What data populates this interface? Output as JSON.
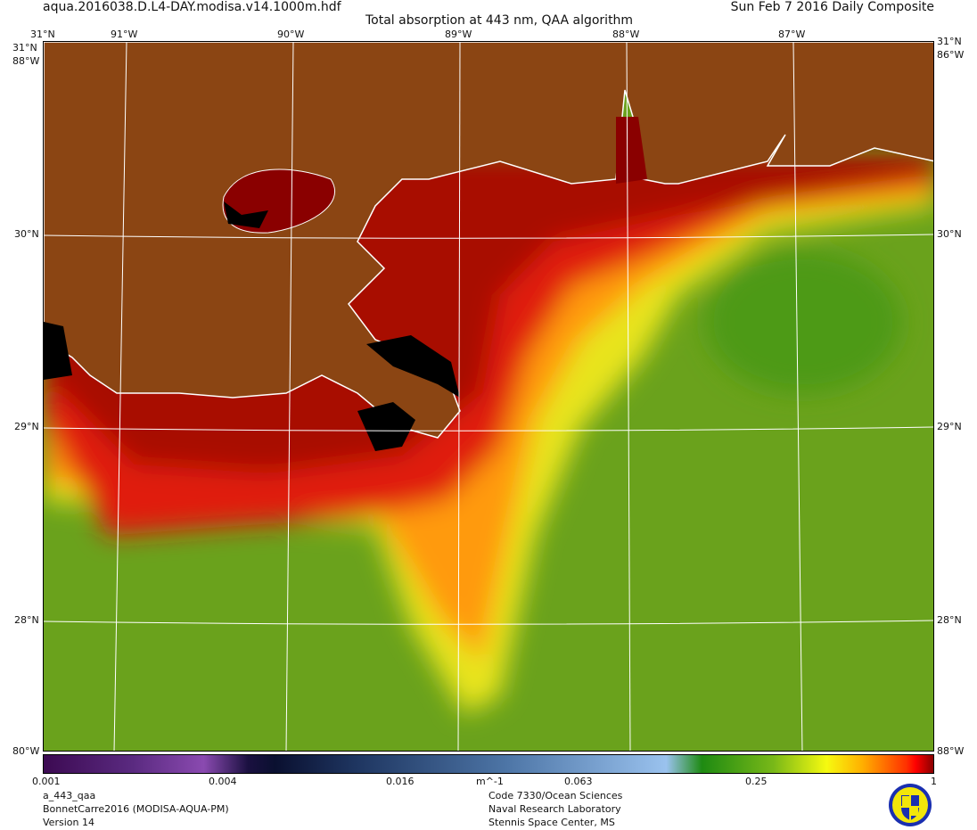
{
  "header": {
    "filename": "aqua.2016038.D.L4-DAY.modisa.v14.1000m.hdf",
    "date": "Sun Feb  7 2016 Daily Composite",
    "title": "Total absorption at 443 nm, QAA algorithm"
  },
  "map": {
    "lon_labels": [
      "91°W",
      "90°W",
      "89°W",
      "88°W",
      "87°W"
    ],
    "lat_labels": [
      "30°N",
      "29°N",
      "28°N"
    ],
    "corner_labels": {
      "top_lat": "31°N",
      "left_top": "31°N",
      "right_top": "31°N",
      "left_lon": "88°W",
      "right_lon": "86°W",
      "left_bottom": "80°W",
      "right_bottom": "88°W"
    },
    "colors": {
      "land": "#8B4513",
      "coast": "#ffffff",
      "nodata": "#000000"
    }
  },
  "colorbar": {
    "tick_labels": [
      "0.001",
      "0.004",
      "0.016",
      "0.063",
      "0.25",
      "1"
    ],
    "units": "m^-1",
    "scale": "log",
    "range": [
      0.001,
      1
    ]
  },
  "footer": {
    "left": [
      "a_443_qaa",
      "BonnetCarre2016 (MODISA-AQUA-PM)",
      "Version 14"
    ],
    "right": [
      "Code 7330/Ocean Sciences",
      "Naval Research Laboratory",
      "Stennis Space Center, MS"
    ]
  }
}
